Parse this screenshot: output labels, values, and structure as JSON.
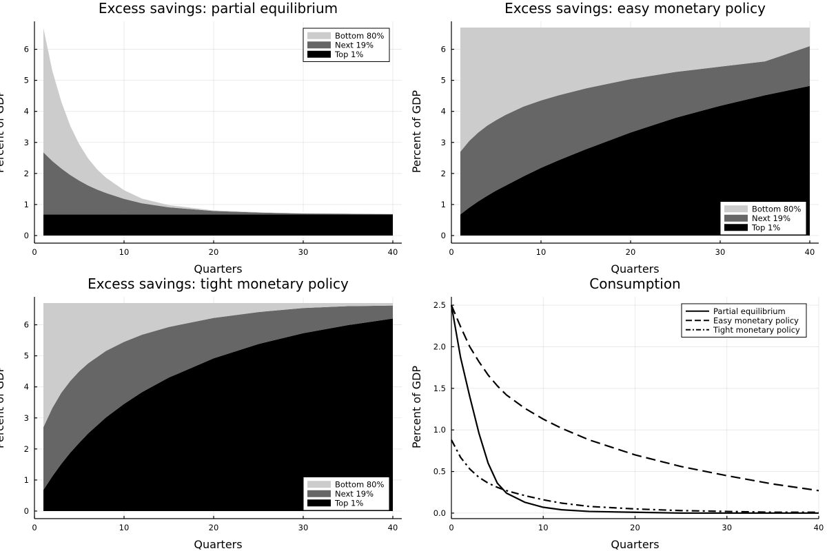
{
  "chart_data": [
    {
      "type": "area",
      "title": "Excess savings: partial equilibrium",
      "xlabel": "Quarters",
      "ylabel": "Percent of GDP",
      "xlim": [
        0,
        41
      ],
      "ylim": [
        -0.2,
        6.9
      ],
      "xticks": [
        0,
        10,
        20,
        30,
        40
      ],
      "yticks": [
        0,
        1,
        2,
        3,
        4,
        5,
        6
      ],
      "grid": true,
      "legend_position": "top-right",
      "stacked": true,
      "x": [
        1,
        2,
        3,
        4,
        5,
        6,
        7,
        8,
        10,
        12,
        15,
        20,
        25,
        30,
        35,
        40
      ],
      "series": [
        {
          "name": "Top 1%",
          "color": "#000000",
          "values": [
            0.68,
            0.68,
            0.68,
            0.68,
            0.68,
            0.68,
            0.68,
            0.68,
            0.68,
            0.68,
            0.68,
            0.68,
            0.68,
            0.68,
            0.68,
            0.68
          ]
        },
        {
          "name": "Next 19%",
          "color": "#666666",
          "values": [
            2.0,
            1.72,
            1.48,
            1.27,
            1.09,
            0.93,
            0.8,
            0.69,
            0.5,
            0.36,
            0.23,
            0.11,
            0.06,
            0.03,
            0.02,
            0.01
          ]
        },
        {
          "name": "Bottom 80%",
          "color": "#cccccc",
          "values": [
            4.0,
            2.9,
            2.15,
            1.58,
            1.17,
            0.87,
            0.65,
            0.49,
            0.28,
            0.15,
            0.07,
            0.02,
            0.01,
            0.0,
            0.0,
            0.0
          ]
        }
      ]
    },
    {
      "type": "area",
      "title": "Excess savings: easy monetary policy",
      "xlabel": "Quarters",
      "ylabel": "Percent of GDP",
      "xlim": [
        0,
        41
      ],
      "ylim": [
        -0.2,
        6.9
      ],
      "xticks": [
        0,
        10,
        20,
        30,
        40
      ],
      "yticks": [
        0,
        1,
        2,
        3,
        4,
        5,
        6
      ],
      "grid": true,
      "legend_position": "bottom-right",
      "stacked": true,
      "x": [
        1,
        2,
        3,
        4,
        5,
        6,
        8,
        10,
        12,
        15,
        20,
        25,
        30,
        35,
        40
      ],
      "series": [
        {
          "name": "Top 1%",
          "color": "#000000",
          "values": [
            0.68,
            0.9,
            1.1,
            1.28,
            1.45,
            1.6,
            1.9,
            2.18,
            2.43,
            2.78,
            3.32,
            3.79,
            4.18,
            4.52,
            4.82
          ]
        },
        {
          "name": "Next 19%",
          "color": "#666666",
          "values": [
            2.02,
            2.15,
            2.22,
            2.26,
            2.27,
            2.28,
            2.25,
            2.17,
            2.09,
            1.96,
            1.72,
            1.48,
            1.26,
            1.09,
            1.28
          ]
        },
        {
          "name": "Bottom 80%",
          "color": "#cccccc",
          "values": [
            4.0,
            3.65,
            3.38,
            3.16,
            2.98,
            2.82,
            2.55,
            2.35,
            2.18,
            1.96,
            1.66,
            1.43,
            1.26,
            1.09,
            0.6
          ]
        }
      ]
    },
    {
      "type": "area",
      "title": "Excess savings: tight monetary policy",
      "xlabel": "Quarters",
      "ylabel": "Percent of GDP",
      "xlim": [
        0,
        41
      ],
      "ylim": [
        -0.2,
        6.9
      ],
      "xticks": [
        0,
        10,
        20,
        30,
        40
      ],
      "yticks": [
        0,
        1,
        2,
        3,
        4,
        5,
        6
      ],
      "grid": true,
      "legend_position": "bottom-right",
      "stacked": true,
      "x": [
        1,
        2,
        3,
        4,
        5,
        6,
        8,
        10,
        12,
        15,
        20,
        25,
        30,
        35,
        40
      ],
      "series": [
        {
          "name": "Top 1%",
          "color": "#000000",
          "values": [
            0.68,
            1.12,
            1.52,
            1.88,
            2.2,
            2.5,
            3.02,
            3.45,
            3.83,
            4.3,
            4.92,
            5.38,
            5.73,
            5.99,
            6.2
          ]
        },
        {
          "name": "Next 19%",
          "color": "#666666",
          "values": [
            2.02,
            2.2,
            2.29,
            2.31,
            2.3,
            2.26,
            2.14,
            2.0,
            1.85,
            1.63,
            1.3,
            1.03,
            0.81,
            0.61,
            0.42
          ]
        },
        {
          "name": "Bottom 80%",
          "color": "#cccccc",
          "values": [
            4.0,
            3.38,
            2.89,
            2.51,
            2.2,
            1.94,
            1.54,
            1.25,
            1.02,
            0.77,
            0.48,
            0.29,
            0.16,
            0.1,
            0.08
          ]
        }
      ]
    },
    {
      "type": "line",
      "title": "Consumption",
      "xlabel": "Quarters",
      "ylabel": "Percent of GDP",
      "xlim": [
        0,
        40
      ],
      "ylim": [
        -0.05,
        2.6
      ],
      "xticks": [
        0,
        10,
        20,
        30,
        40
      ],
      "yticks": [
        0.0,
        0.5,
        1.0,
        1.5,
        2.0,
        2.5
      ],
      "yticklabels": [
        "0.0",
        "0.5",
        "1.0",
        "1.5",
        "2.0",
        "2.5"
      ],
      "grid": true,
      "legend_position": "top-right",
      "x": [
        0,
        1,
        2,
        3,
        4,
        5,
        6,
        8,
        10,
        12,
        15,
        20,
        25,
        30,
        35,
        40
      ],
      "series": [
        {
          "name": "Partial equilibrium",
          "style": "solid",
          "values": [
            2.5,
            1.87,
            1.4,
            0.96,
            0.6,
            0.36,
            0.24,
            0.13,
            0.07,
            0.04,
            0.02,
            0.01,
            0.0,
            0.0,
            0.0,
            0.0
          ]
        },
        {
          "name": "Easy monetary policy",
          "style": "dashed",
          "values": [
            2.5,
            2.24,
            2.0,
            1.82,
            1.66,
            1.53,
            1.42,
            1.26,
            1.13,
            1.02,
            0.88,
            0.7,
            0.56,
            0.45,
            0.35,
            0.27
          ]
        },
        {
          "name": "Tight monetary policy",
          "style": "dashdot",
          "values": [
            0.88,
            0.67,
            0.53,
            0.43,
            0.36,
            0.31,
            0.27,
            0.21,
            0.16,
            0.12,
            0.08,
            0.05,
            0.03,
            0.02,
            0.01,
            0.01
          ]
        }
      ]
    }
  ]
}
